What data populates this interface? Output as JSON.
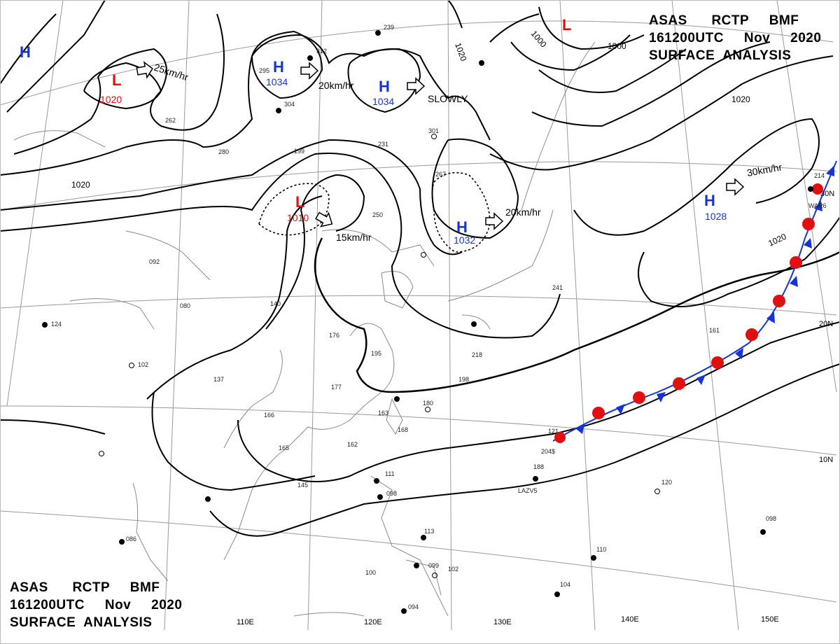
{
  "header": {
    "line1": "ASAS      RCTP     BMF",
    "line2": "161200UTC     Nov     2020",
    "line3": "SURFACE  ANALYSIS"
  },
  "footer": {
    "line1": "ASAS      RCTP     BMF",
    "line2": "161200UTC     Nov     2020",
    "line3": "SURFACE  ANALYSIS"
  },
  "pressure_centers": [
    {
      "type": "H",
      "value": ""
    },
    {
      "type": "L",
      "value": "1020"
    },
    {
      "type": "H",
      "value": "1034"
    },
    {
      "type": "H",
      "value": "1034"
    },
    {
      "type": "L",
      "value": ""
    },
    {
      "type": "L",
      "value": "1010"
    },
    {
      "type": "H",
      "value": "1032"
    },
    {
      "type": "H",
      "value": "1028"
    }
  ],
  "motion_labels": [
    "25km/hr",
    "20km/hr",
    "SLOWLY",
    "15km/hr",
    "20km/hr",
    "30km/hr"
  ],
  "isobar_labels": [
    "1020",
    "1020",
    "1020",
    "1020",
    "1000",
    "1000"
  ],
  "longitude_labels": [
    "110E",
    "120E",
    "130E",
    "140E",
    "150E"
  ],
  "latitude_labels": [
    "30N",
    "20N",
    "10N"
  ],
  "front": {
    "type": "stationary",
    "warm_color": "#e01010",
    "cold_color": "#1533d6"
  },
  "station_samples": [
    "312",
    "239",
    "295",
    "304",
    "301",
    "262",
    "280",
    "199",
    "231",
    "267",
    "250",
    "092",
    "080",
    "140",
    "176",
    "195",
    "218",
    "198",
    "180",
    "163",
    "168",
    "162",
    "165",
    "145",
    "137",
    "166",
    "177",
    "102",
    "124",
    "241",
    "161",
    "121",
    "204$",
    "188",
    "LAZV5",
    "120",
    "111",
    "098",
    "113",
    "099",
    "102",
    "100",
    "094",
    "086",
    "104",
    "110",
    "098",
    "214",
    "WAR6"
  ],
  "colors": {
    "high": "#1533d6",
    "low": "#e01010",
    "isobar": "#000000",
    "coast": "#8a8a8a",
    "grid": "#9a9a9a"
  }
}
